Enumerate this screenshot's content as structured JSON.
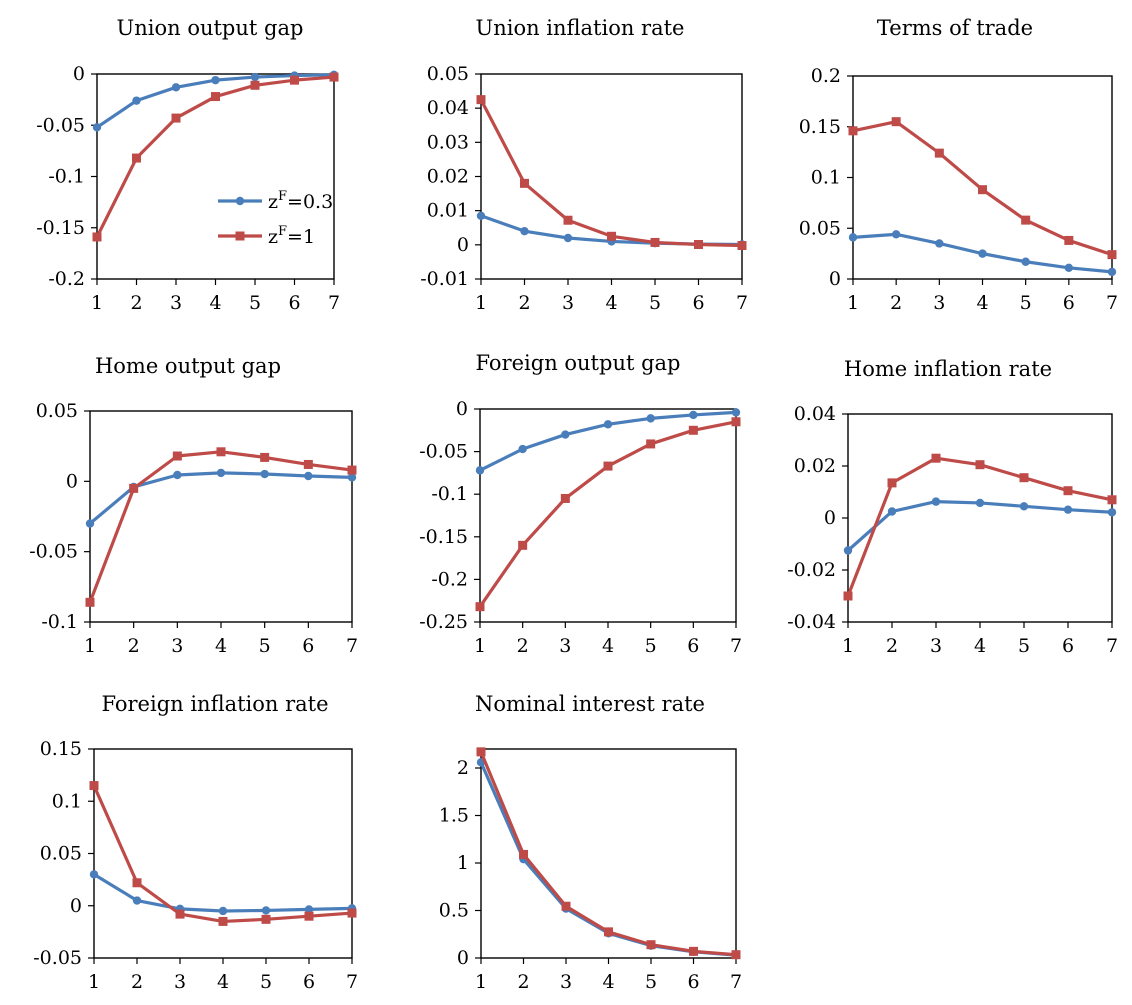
{
  "colors": {
    "series1": "#4a7ebb",
    "series2": "#be4b48"
  },
  "legend": {
    "placement": "inside-bottom-right of first panel",
    "items": [
      {
        "base": "z",
        "sup": "F",
        "rest": "=0.3"
      },
      {
        "base": "z",
        "sup": "F",
        "rest": "=1"
      }
    ]
  },
  "chart_data": [
    {
      "type": "line",
      "title": "Union output gap",
      "x": [
        1,
        2,
        3,
        4,
        5,
        6,
        7
      ],
      "xticks": [
        "1",
        "2",
        "3",
        "4",
        "5",
        "6",
        "7"
      ],
      "ylim": [
        -0.2,
        0
      ],
      "yticks": [
        -0.2,
        -0.15,
        -0.1,
        -0.05,
        0
      ],
      "yticklabels": [
        "-0.2",
        "-0.15",
        "-0.1",
        "-0.05",
        "0"
      ],
      "series": [
        {
          "values": [
            -0.052,
            -0.026,
            -0.013,
            -0.006,
            -0.003,
            -0.0015,
            -0.0008
          ]
        },
        {
          "values": [
            -0.159,
            -0.082,
            -0.043,
            -0.022,
            -0.011,
            -0.006,
            -0.003
          ]
        }
      ]
    },
    {
      "type": "line",
      "title": "Union inflation rate",
      "x": [
        1,
        2,
        3,
        4,
        5,
        6,
        7
      ],
      "xticks": [
        "1",
        "2",
        "3",
        "4",
        "5",
        "6",
        "7"
      ],
      "ylim": [
        -0.01,
        0.05
      ],
      "yticks": [
        -0.01,
        0,
        0.01,
        0.02,
        0.03,
        0.04,
        0.05
      ],
      "yticklabels": [
        "-0.01",
        "0",
        "0.01",
        "0.02",
        "0.03",
        "0.04",
        "0.05"
      ],
      "series": [
        {
          "values": [
            0.0085,
            0.004,
            0.002,
            0.001,
            0.0005,
            0.0002,
            0.0001
          ]
        },
        {
          "values": [
            0.0425,
            0.018,
            0.0072,
            0.0025,
            0.0007,
            0.0001,
            -0.0002
          ]
        }
      ]
    },
    {
      "type": "line",
      "title": "Terms of trade",
      "x": [
        1,
        2,
        3,
        4,
        5,
        6,
        7
      ],
      "xticks": [
        "1",
        "2",
        "3",
        "4",
        "5",
        "6",
        "7"
      ],
      "ylim": [
        0,
        0.2
      ],
      "yticks": [
        0,
        0.05,
        0.1,
        0.15,
        0.2
      ],
      "yticklabels": [
        "0",
        "0.05",
        "0.1",
        "0.15",
        "0.2"
      ],
      "series": [
        {
          "values": [
            0.041,
            0.044,
            0.035,
            0.025,
            0.017,
            0.011,
            0.007
          ]
        },
        {
          "values": [
            0.146,
            0.155,
            0.124,
            0.088,
            0.058,
            0.038,
            0.024
          ]
        }
      ]
    },
    {
      "type": "line",
      "title": "Home output gap",
      "x": [
        1,
        2,
        3,
        4,
        5,
        6,
        7
      ],
      "xticks": [
        "1",
        "2",
        "3",
        "4",
        "5",
        "6",
        "7"
      ],
      "ylim": [
        -0.1,
        0.05
      ],
      "yticks": [
        -0.1,
        -0.05,
        0,
        0.05
      ],
      "yticklabels": [
        "-0.1",
        "-0.05",
        "0",
        "0.05"
      ],
      "series": [
        {
          "values": [
            -0.03,
            -0.004,
            0.0045,
            0.006,
            0.0052,
            0.0038,
            0.0028
          ]
        },
        {
          "values": [
            -0.086,
            -0.005,
            0.018,
            0.021,
            0.017,
            0.012,
            0.008
          ]
        }
      ]
    },
    {
      "type": "line",
      "title": "Foreign output gap",
      "x": [
        1,
        2,
        3,
        4,
        5,
        6,
        7
      ],
      "xticks": [
        "1",
        "2",
        "3",
        "4",
        "5",
        "6",
        "7"
      ],
      "ylim": [
        -0.25,
        0
      ],
      "yticks": [
        -0.25,
        -0.2,
        -0.15,
        -0.1,
        -0.05,
        0
      ],
      "yticklabels": [
        "-0.25",
        "-0.2",
        "-0.15",
        "-0.1",
        "-0.05",
        "0"
      ],
      "series": [
        {
          "values": [
            -0.072,
            -0.047,
            -0.03,
            -0.018,
            -0.011,
            -0.007,
            -0.004
          ]
        },
        {
          "values": [
            -0.232,
            -0.16,
            -0.105,
            -0.067,
            -0.041,
            -0.025,
            -0.015
          ]
        }
      ]
    },
    {
      "type": "line",
      "title": "Home inflation rate",
      "x": [
        1,
        2,
        3,
        4,
        5,
        6,
        7
      ],
      "xticks": [
        "1",
        "2",
        "3",
        "4",
        "5",
        "6",
        "7"
      ],
      "ylim": [
        -0.04,
        0.04
      ],
      "yticks": [
        -0.04,
        -0.02,
        0,
        0.02,
        0.04
      ],
      "yticklabels": [
        "-0.04",
        "-0.02",
        "0",
        "0.02",
        "0.04"
      ],
      "series": [
        {
          "values": [
            -0.0125,
            0.0025,
            0.0063,
            0.0058,
            0.0045,
            0.0032,
            0.0022
          ]
        },
        {
          "values": [
            -0.03,
            0.0135,
            0.023,
            0.0205,
            0.0155,
            0.0105,
            0.007
          ]
        }
      ]
    },
    {
      "type": "line",
      "title": "Foreign inflation rate",
      "x": [
        1,
        2,
        3,
        4,
        5,
        6,
        7
      ],
      "xticks": [
        "1",
        "2",
        "3",
        "4",
        "5",
        "6",
        "7"
      ],
      "ylim": [
        -0.05,
        0.15
      ],
      "yticks": [
        -0.05,
        0,
        0.05,
        0.1,
        0.15
      ],
      "yticklabels": [
        "-0.05",
        "0",
        "0.05",
        "0.1",
        "0.15"
      ],
      "series": [
        {
          "values": [
            0.03,
            0.005,
            -0.003,
            -0.005,
            -0.0045,
            -0.0035,
            -0.0025
          ]
        },
        {
          "values": [
            0.115,
            0.022,
            -0.008,
            -0.015,
            -0.013,
            -0.01,
            -0.007
          ]
        }
      ]
    },
    {
      "type": "line",
      "title": "Nominal interest rate",
      "x": [
        1,
        2,
        3,
        4,
        5,
        6,
        7
      ],
      "xticks": [
        "1",
        "2",
        "3",
        "4",
        "5",
        "6",
        "7"
      ],
      "ylim": [
        0,
        2.2
      ],
      "yticks": [
        0,
        0.5,
        1,
        1.5,
        2
      ],
      "yticklabels": [
        "0",
        "0.5",
        "1",
        "1.5",
        "2"
      ],
      "series": [
        {
          "values": [
            2.06,
            1.04,
            0.52,
            0.26,
            0.13,
            0.065,
            0.03
          ]
        },
        {
          "values": [
            2.17,
            1.09,
            0.545,
            0.275,
            0.14,
            0.07,
            0.035
          ]
        }
      ]
    }
  ]
}
